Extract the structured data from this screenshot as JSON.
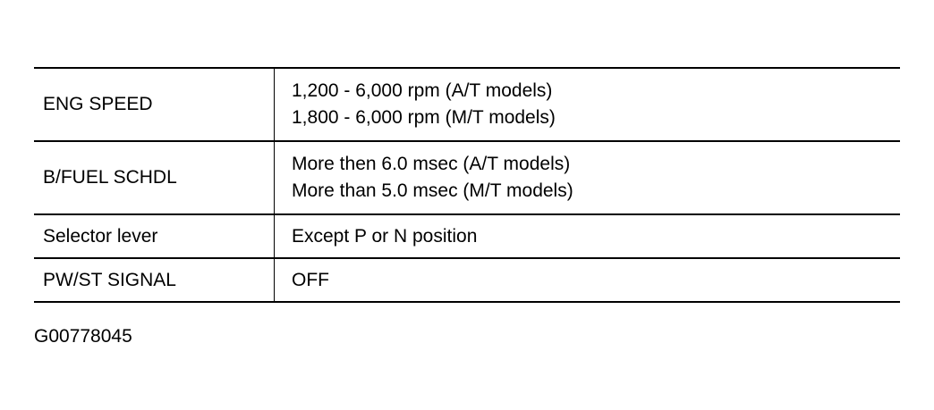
{
  "table": {
    "rows": [
      {
        "label": "ENG SPEED",
        "values": [
          "1,200 - 6,000 rpm (A/T models)",
          "1,800 - 6,000 rpm (M/T models)"
        ]
      },
      {
        "label": "B/FUEL SCHDL",
        "values": [
          "More then 6.0 msec (A/T models)",
          "More than 5.0 msec (M/T models)"
        ]
      },
      {
        "label": "Selector lever",
        "values": [
          "Except P or N position"
        ]
      },
      {
        "label": "PW/ST SIGNAL",
        "values": [
          "OFF"
        ]
      }
    ]
  },
  "footer": {
    "code": "G00778045"
  }
}
